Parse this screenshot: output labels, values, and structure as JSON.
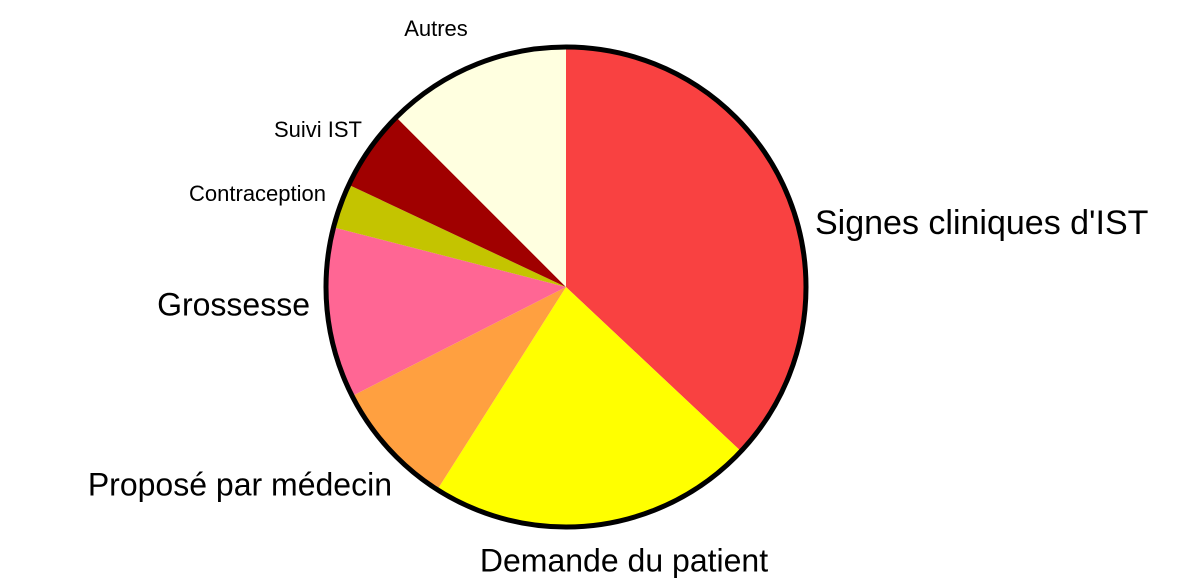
{
  "chart_data": {
    "type": "pie",
    "categories": [
      "Signes cliniques d'IST",
      "Demande du patient",
      "Proposé par médecin",
      "Grossesse",
      "Contraception",
      "Suivi IST",
      "Autres"
    ],
    "values": [
      37,
      22,
      8.5,
      11.5,
      3,
      5.5,
      12.5
    ],
    "colors": [
      "#f94141",
      "#ffff00",
      "#ffa040",
      "#ff6694",
      "#c4c400",
      "#a00000",
      "#ffffe0"
    ]
  }
}
